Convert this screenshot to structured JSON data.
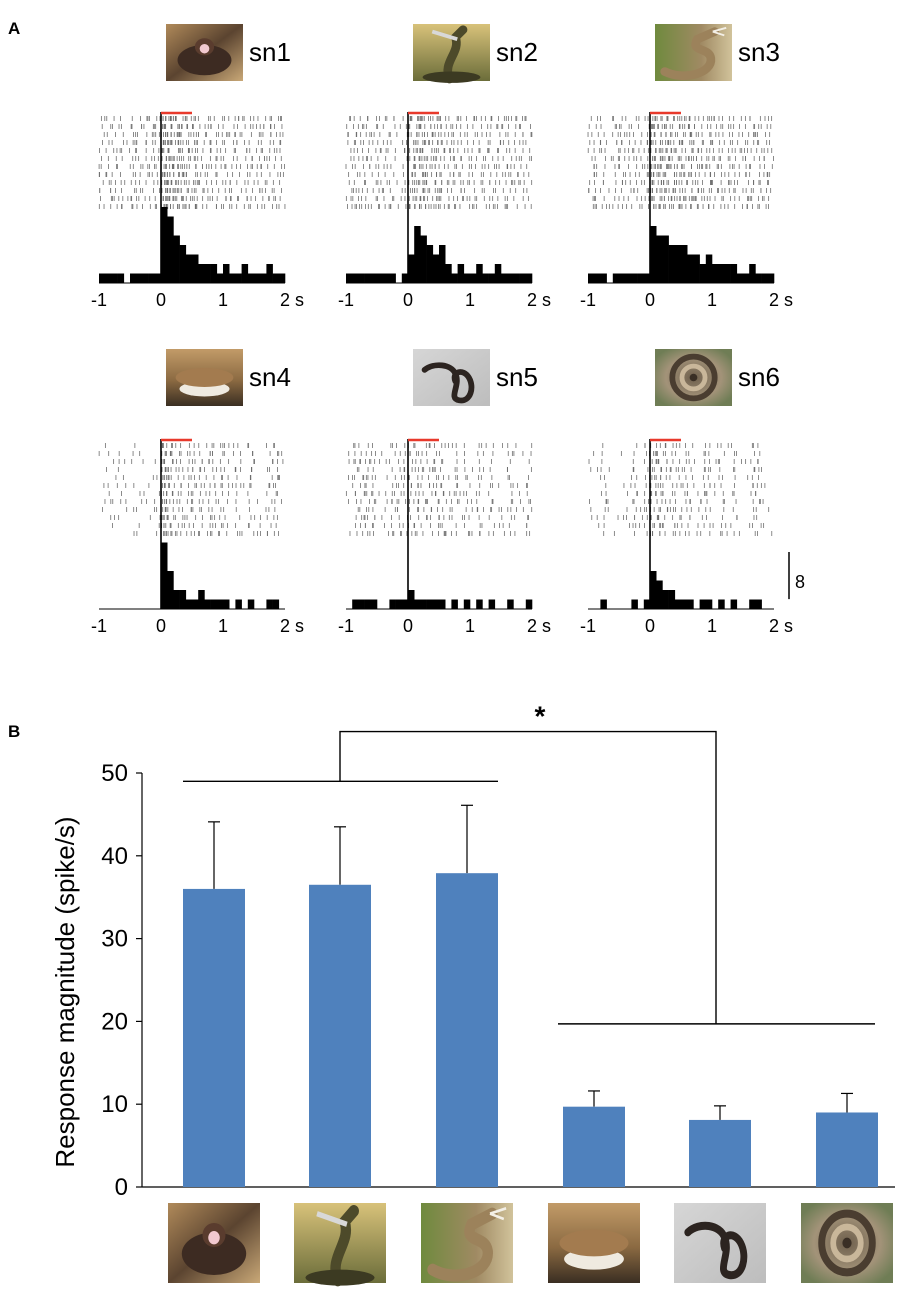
{
  "figure": {
    "panel_a_label": "A",
    "panel_b_label": "B"
  },
  "colors": {
    "bar": "#4f81bd",
    "stimulus_bar": "#e8392b",
    "histogram": "#000000",
    "raster": "#6e6e6e"
  },
  "chart_data": [
    {
      "type": "bar",
      "panel": "A",
      "chart_kind": "raster-and-PSTH",
      "x_unit": "s",
      "xlim": [
        -1,
        2
      ],
      "x_ticks": [
        "-1",
        "0",
        "1",
        "2 s"
      ],
      "scale_bar_label": "8",
      "bin_width_s": 0.1,
      "stimulus_onset_s": 0,
      "stimulus_duration_s": 0.5,
      "panels": [
        {
          "name": "sn1",
          "icon": "snake-sn1-photo",
          "raster_trials": 12,
          "bin_start": -1,
          "counts": [
            1,
            1,
            1,
            1,
            0,
            1,
            1,
            1,
            1,
            1,
            8,
            7,
            5,
            4,
            3,
            3,
            2,
            2,
            2,
            1,
            2,
            1,
            1,
            2,
            1,
            1,
            1,
            2,
            1,
            1
          ]
        },
        {
          "name": "sn2",
          "icon": "snake-sn2-photo",
          "raster_trials": 12,
          "bin_start": -1,
          "counts": [
            1,
            1,
            1,
            1,
            1,
            1,
            1,
            1,
            0,
            1,
            3,
            6,
            5,
            4,
            3,
            4,
            2,
            1,
            2,
            1,
            1,
            2,
            1,
            1,
            2,
            1,
            1,
            1,
            1,
            1
          ]
        },
        {
          "name": "sn3",
          "icon": "snake-sn3-photo",
          "raster_trials": 12,
          "bin_start": -1,
          "counts": [
            1,
            1,
            1,
            0,
            1,
            1,
            1,
            1,
            1,
            1,
            6,
            5,
            5,
            4,
            4,
            4,
            3,
            3,
            2,
            3,
            2,
            2,
            2,
            2,
            1,
            1,
            2,
            1,
            1,
            1
          ]
        },
        {
          "name": "sn4",
          "icon": "snake-sn4-photo",
          "raster_trials": 12,
          "bin_start": -1,
          "counts": [
            0,
            0,
            0,
            0,
            0,
            0,
            0,
            0,
            0,
            0,
            7,
            4,
            2,
            2,
            1,
            1,
            2,
            1,
            1,
            1,
            1,
            0,
            1,
            0,
            1,
            0,
            0,
            1,
            1,
            0
          ]
        },
        {
          "name": "sn5",
          "icon": "snake-sn5-photo",
          "raster_trials": 12,
          "bin_start": -1,
          "counts": [
            0,
            1,
            1,
            1,
            1,
            0,
            0,
            1,
            1,
            1,
            2,
            1,
            1,
            1,
            1,
            1,
            0,
            1,
            0,
            1,
            0,
            1,
            0,
            1,
            0,
            0,
            1,
            0,
            0,
            1
          ]
        },
        {
          "name": "sn6",
          "icon": "snake-sn6-photo",
          "raster_trials": 12,
          "bin_start": -1,
          "counts": [
            0,
            0,
            1,
            0,
            0,
            0,
            0,
            1,
            0,
            1,
            4,
            3,
            2,
            2,
            1,
            1,
            1,
            0,
            1,
            1,
            0,
            1,
            0,
            1,
            0,
            0,
            1,
            1,
            0,
            0
          ]
        }
      ]
    },
    {
      "type": "bar",
      "panel": "B",
      "ylabel": "Response magnitude (spike/s)",
      "ylim": [
        0,
        50
      ],
      "y_ticks": [
        "0",
        "10",
        "20",
        "30",
        "40",
        "50"
      ],
      "categories": [
        "sn1",
        "sn2",
        "sn3",
        "sn4",
        "sn5",
        "sn6"
      ],
      "category_icons": [
        "snake-sn1-photo",
        "snake-sn2-photo",
        "snake-sn3-photo",
        "snake-sn4-photo",
        "snake-sn5-photo",
        "snake-sn6-photo"
      ],
      "values": [
        36.0,
        36.5,
        37.9,
        9.7,
        8.1,
        9.0
      ],
      "error_upper": [
        44.1,
        43.5,
        46.1,
        11.6,
        9.8,
        11.3
      ],
      "significance": {
        "label": "*",
        "group_1": [
          "sn1",
          "sn2",
          "sn3"
        ],
        "group_2": [
          "sn4",
          "sn5",
          "sn6"
        ],
        "group_1_line_y": 49,
        "group_2_line_y": 19.7,
        "top_y": 55
      }
    }
  ]
}
